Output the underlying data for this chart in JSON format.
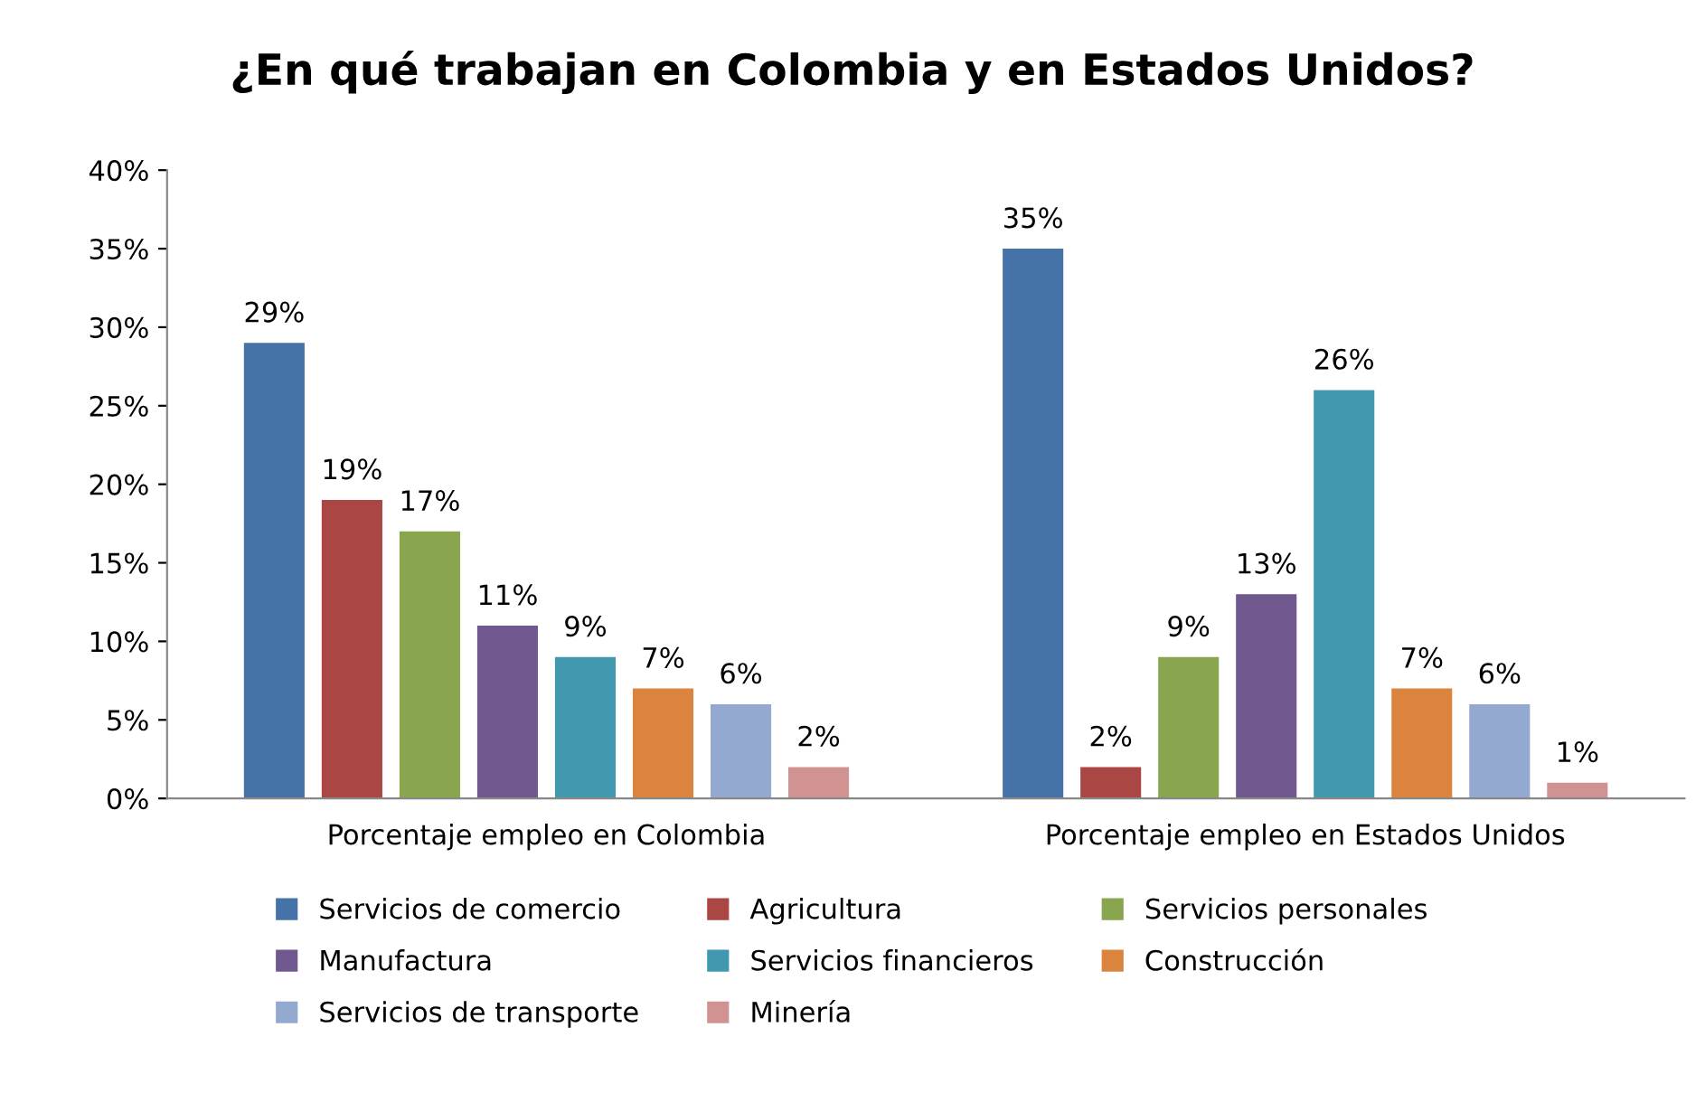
{
  "chart_data": {
    "type": "bar",
    "title": "¿En qué trabajan en Colombia y en Estados Unidos?",
    "categories": [
      "Porcentaje empleo en Colombia",
      "Porcentaje empleo en Estados Unidos"
    ],
    "series": [
      {
        "name": "Servicios de comercio",
        "color": "#4572a7",
        "values": [
          29,
          35
        ],
        "value_labels": [
          "29%",
          "35%"
        ]
      },
      {
        "name": "Agricultura",
        "color": "#aa4643",
        "values": [
          19,
          2
        ],
        "value_labels": [
          "19%",
          "2%"
        ]
      },
      {
        "name": "Servicios personales",
        "color": "#89a54e",
        "values": [
          17,
          9
        ],
        "value_labels": [
          "17%",
          "9%"
        ]
      },
      {
        "name": "Manufactura",
        "color": "#71588f",
        "values": [
          11,
          13
        ],
        "value_labels": [
          "11%",
          "13%"
        ]
      },
      {
        "name": "Servicios financieros",
        "color": "#4198af",
        "values": [
          9,
          26
        ],
        "value_labels": [
          "9%",
          "26%"
        ]
      },
      {
        "name": "Construcción",
        "color": "#db843d",
        "values": [
          7,
          7
        ],
        "value_labels": [
          "7%",
          "7%"
        ]
      },
      {
        "name": "Servicios de transporte",
        "color": "#93a9cf",
        "values": [
          6,
          6
        ],
        "value_labels": [
          "6%",
          "6%"
        ]
      },
      {
        "name": "Minería",
        "color": "#d19392",
        "values": [
          2,
          1
        ],
        "value_labels": [
          "2%",
          "1%"
        ]
      }
    ],
    "ylim": [
      0,
      40
    ],
    "yticks": [
      {
        "value": 0,
        "label": "0%"
      },
      {
        "value": 5,
        "label": "5%"
      },
      {
        "value": 10,
        "label": "10%"
      },
      {
        "value": 15,
        "label": "15%"
      },
      {
        "value": 20,
        "label": "20%"
      },
      {
        "value": 25,
        "label": "25%"
      },
      {
        "value": 30,
        "label": "30%"
      },
      {
        "value": 35,
        "label": "35%"
      },
      {
        "value": 40,
        "label": "40%"
      }
    ],
    "grid": false,
    "legend": "bottom"
  }
}
